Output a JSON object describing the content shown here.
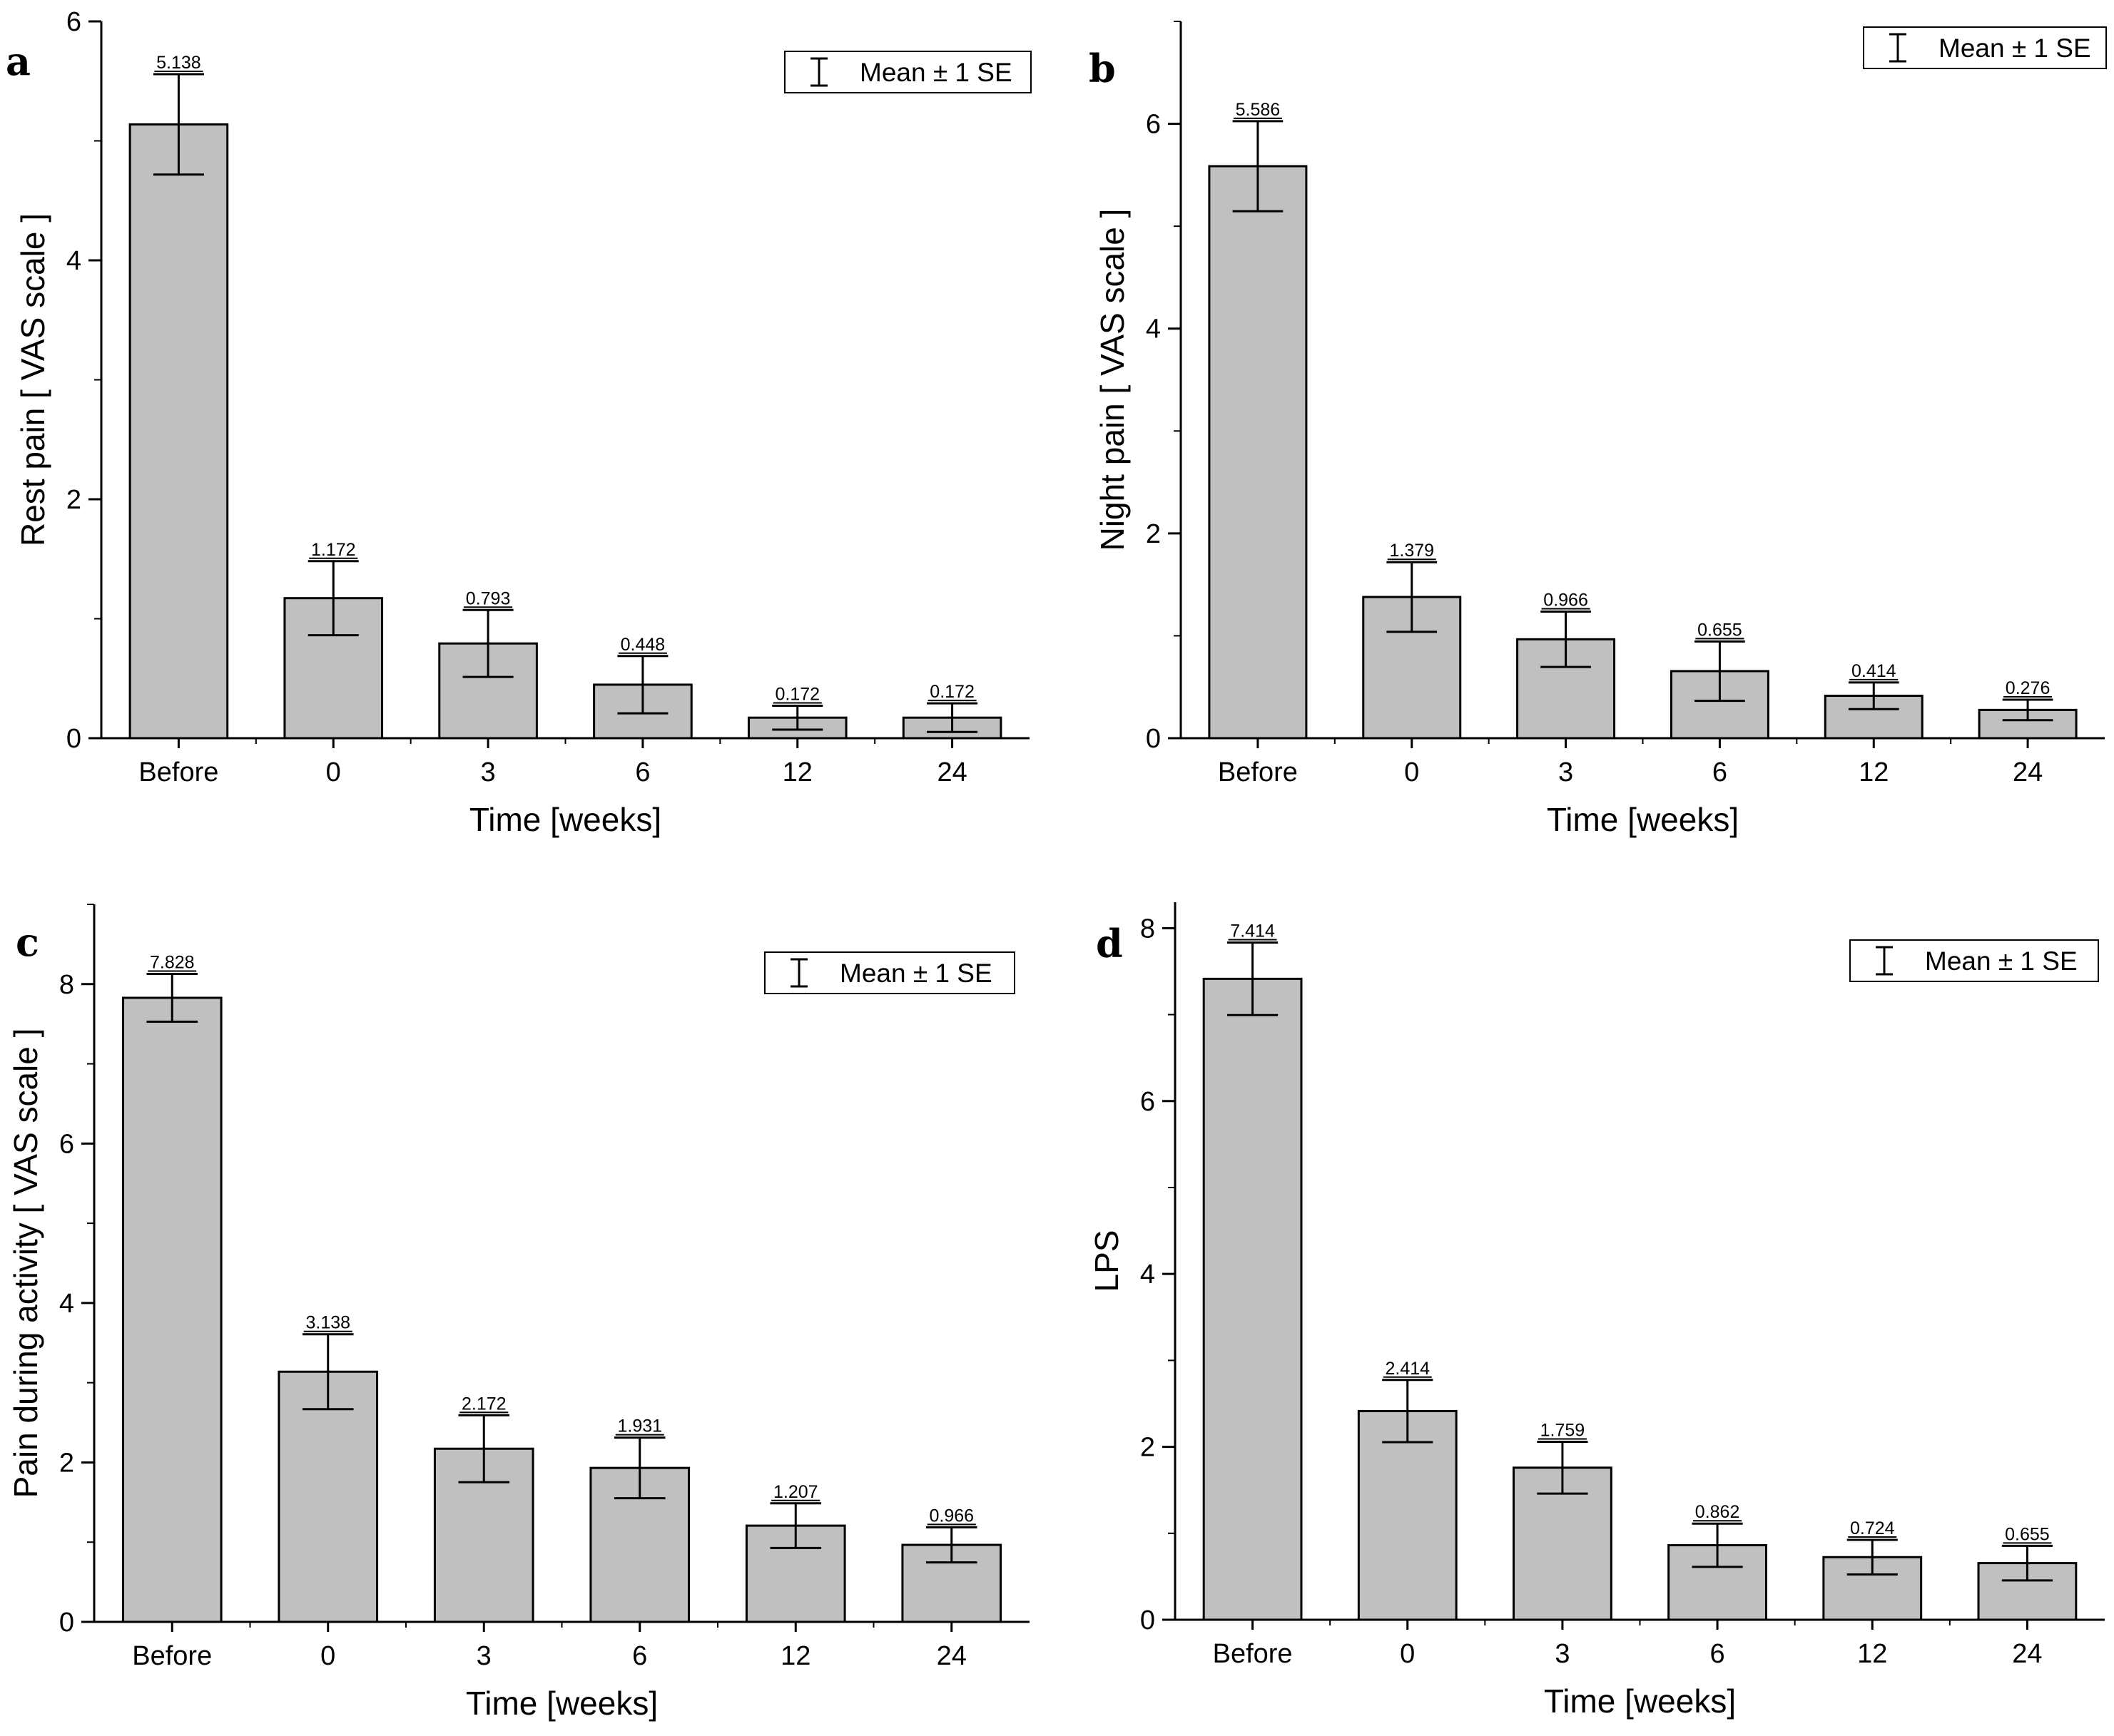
{
  "figure": {
    "panels": [
      "a",
      "b",
      "c",
      "d"
    ]
  },
  "chart_data": [
    {
      "panel": "a",
      "type": "bar",
      "title": "",
      "xlabel": "Time [weeks]",
      "ylabel": "Rest pain [ VAS scale ]",
      "categories": [
        "Before",
        "0",
        "3",
        "6",
        "12",
        "24"
      ],
      "values": [
        5.138,
        1.172,
        0.793,
        0.448,
        0.172,
        0.172
      ],
      "value_labels": [
        "5.138",
        "1.172",
        "0.793",
        "0.448",
        "0.172",
        "0.172"
      ],
      "error_se": [
        0.42,
        0.31,
        0.28,
        0.24,
        0.1,
        0.12
      ],
      "ylim": [
        0,
        6
      ],
      "yticks": [
        0,
        2,
        4,
        6
      ],
      "ytick_labels": [
        "0",
        "2",
        "4",
        "6"
      ],
      "legend": "Mean ± 1 SE",
      "legend_position": "top-right",
      "bar_color": "#c0c0c0"
    },
    {
      "panel": "b",
      "type": "bar",
      "title": "",
      "xlabel": "Time [weeks]",
      "ylabel": "Night pain [ VAS scale ]",
      "categories": [
        "Before",
        "0",
        "3",
        "6",
        "12",
        "24"
      ],
      "values": [
        5.586,
        1.379,
        0.966,
        0.655,
        0.414,
        0.276
      ],
      "value_labels": [
        "5.586",
        "1.379",
        "0.966",
        "0.655",
        "0.414",
        "0.276"
      ],
      "error_se": [
        0.44,
        0.34,
        0.27,
        0.29,
        0.13,
        0.1
      ],
      "ylim": [
        0,
        7
      ],
      "yticks": [
        0,
        2,
        4,
        6
      ],
      "ytick_labels": [
        "0",
        "2",
        "4",
        "6"
      ],
      "legend": "Mean ± 1 SE",
      "legend_position": "top-right",
      "bar_color": "#c0c0c0"
    },
    {
      "panel": "c",
      "type": "bar",
      "title": "",
      "xlabel": "Time [weeks]",
      "ylabel": "Pain during activity [ VAS scale ]",
      "categories": [
        "Before",
        "0",
        "3",
        "6",
        "12",
        "24"
      ],
      "values": [
        7.828,
        3.138,
        2.172,
        1.931,
        1.207,
        0.966
      ],
      "value_labels": [
        "7.828",
        "3.138",
        "2.172",
        "1.931",
        "1.207",
        "0.966"
      ],
      "error_se": [
        0.3,
        0.47,
        0.42,
        0.38,
        0.28,
        0.22
      ],
      "ylim": [
        0,
        9
      ],
      "yticks": [
        0,
        2,
        4,
        6,
        8
      ],
      "ytick_labels": [
        "0",
        "2",
        "4",
        "6",
        "8"
      ],
      "legend": "Mean ± 1 SE",
      "legend_position": "top-right",
      "bar_color": "#c0c0c0"
    },
    {
      "panel": "d",
      "type": "bar",
      "title": "",
      "xlabel": "Time [weeks]",
      "ylabel": "LPS",
      "categories": [
        "Before",
        "0",
        "3",
        "6",
        "12",
        "24"
      ],
      "values": [
        7.414,
        2.414,
        1.759,
        0.862,
        0.724,
        0.655
      ],
      "value_labels": [
        "7.414",
        "2.414",
        "1.759",
        "0.862",
        "0.724",
        "0.655"
      ],
      "error_se": [
        0.42,
        0.36,
        0.3,
        0.25,
        0.2,
        0.2
      ],
      "ylim": [
        0,
        8.3
      ],
      "yticks": [
        0,
        2,
        4,
        6,
        8
      ],
      "ytick_labels": [
        "0",
        "2",
        "4",
        "6",
        "8"
      ],
      "legend": "Mean ± 1 SE",
      "legend_position": "top-right",
      "bar_color": "#c0c0c0"
    }
  ]
}
